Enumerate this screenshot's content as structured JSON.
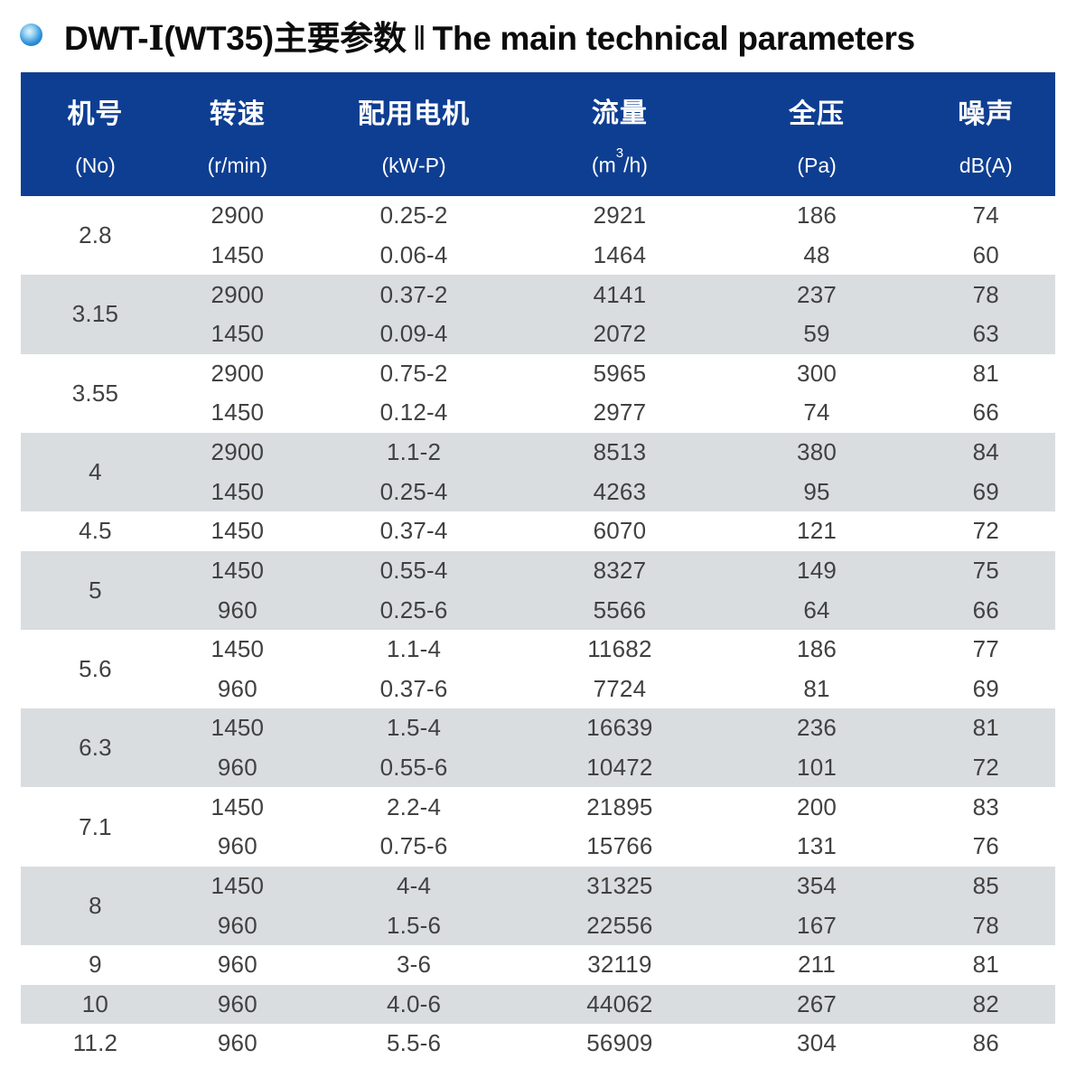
{
  "title": {
    "model_prefix": "DWT-",
    "roman": "Ⅰ",
    "zh_rest": "(WT35)主要参数",
    "separator": "‖",
    "en": "The main technical parameters"
  },
  "colors": {
    "header_bg": "#0e3e92",
    "shade_bg": "#d9dde0",
    "text": "#414141"
  },
  "table": {
    "columns": [
      {
        "zh": "机号",
        "unit": "(No)"
      },
      {
        "zh": "转速",
        "unit": "(r/min)"
      },
      {
        "zh": "配用电机",
        "unit": "(kW-P)"
      },
      {
        "zh": "流量",
        "unit_pre": "(m",
        "unit_sup": "3",
        "unit_post": "/h)"
      },
      {
        "zh": "全压",
        "unit": "(Pa)"
      },
      {
        "zh": "噪声",
        "unit": "dB(A)"
      }
    ],
    "groups": [
      {
        "no": "2.8",
        "rows": [
          [
            "2900",
            "0.25-2",
            "2921",
            "186",
            "74"
          ],
          [
            "1450",
            "0.06-4",
            "1464",
            "48",
            "60"
          ]
        ]
      },
      {
        "no": "3.15",
        "rows": [
          [
            "2900",
            "0.37-2",
            "4141",
            "237",
            "78"
          ],
          [
            "1450",
            "0.09-4",
            "2072",
            "59",
            "63"
          ]
        ]
      },
      {
        "no": "3.55",
        "rows": [
          [
            "2900",
            "0.75-2",
            "5965",
            "300",
            "81"
          ],
          [
            "1450",
            "0.12-4",
            "2977",
            "74",
            "66"
          ]
        ]
      },
      {
        "no": "4",
        "rows": [
          [
            "2900",
            "1.1-2",
            "8513",
            "380",
            "84"
          ],
          [
            "1450",
            "0.25-4",
            "4263",
            "95",
            "69"
          ]
        ]
      },
      {
        "no": "4.5",
        "rows": [
          [
            "1450",
            "0.37-4",
            "6070",
            "121",
            "72"
          ]
        ]
      },
      {
        "no": "5",
        "rows": [
          [
            "1450",
            "0.55-4",
            "8327",
            "149",
            "75"
          ],
          [
            "960",
            "0.25-6",
            "5566",
            "64",
            "66"
          ]
        ]
      },
      {
        "no": "5.6",
        "rows": [
          [
            "1450",
            "1.1-4",
            "11682",
            "186",
            "77"
          ],
          [
            "960",
            "0.37-6",
            "7724",
            "81",
            "69"
          ]
        ]
      },
      {
        "no": "6.3",
        "rows": [
          [
            "1450",
            "1.5-4",
            "16639",
            "236",
            "81"
          ],
          [
            "960",
            "0.55-6",
            "10472",
            "101",
            "72"
          ]
        ]
      },
      {
        "no": "7.1",
        "rows": [
          [
            "1450",
            "2.2-4",
            "21895",
            "200",
            "83"
          ],
          [
            "960",
            "0.75-6",
            "15766",
            "131",
            "76"
          ]
        ]
      },
      {
        "no": "8",
        "rows": [
          [
            "1450",
            "4-4",
            "31325",
            "354",
            "85"
          ],
          [
            "960",
            "1.5-6",
            "22556",
            "167",
            "78"
          ]
        ]
      },
      {
        "no": "9",
        "rows": [
          [
            "960",
            "3-6",
            "32119",
            "211",
            "81"
          ]
        ]
      },
      {
        "no": "10",
        "rows": [
          [
            "960",
            "4.0-6",
            "44062",
            "267",
            "82"
          ]
        ]
      },
      {
        "no": "11.2",
        "rows": [
          [
            "960",
            "5.5-6",
            "56909",
            "304",
            "86"
          ]
        ]
      }
    ]
  }
}
